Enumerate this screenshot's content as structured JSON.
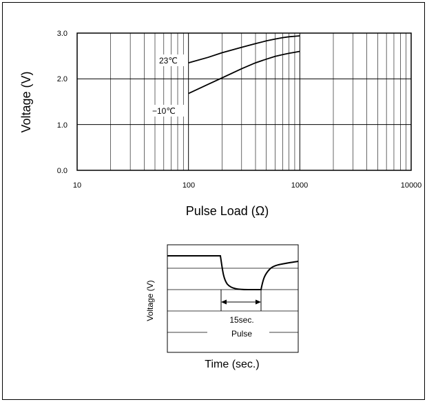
{
  "chart_data": [
    {
      "type": "line",
      "xscale": "log",
      "xlim": [
        10,
        10000
      ],
      "ylim": [
        0,
        3
      ],
      "xticks": [
        "10",
        "100",
        "1000",
        "10000"
      ],
      "yticks": [
        "0.0",
        "1.0",
        "2.0",
        "3.0"
      ],
      "xlabel": "Pulse Load (Ω)",
      "ylabel": "Voltage (V)",
      "grid": true,
      "series": [
        {
          "name": "23℃",
          "x": [
            100,
            150,
            200,
            300,
            400,
            500,
            600,
            700,
            800,
            900,
            1000
          ],
          "y": [
            2.35,
            2.47,
            2.57,
            2.69,
            2.77,
            2.83,
            2.87,
            2.9,
            2.92,
            2.93,
            2.94
          ]
        },
        {
          "name": "−10℃",
          "x": [
            100,
            150,
            200,
            300,
            400,
            500,
            600,
            700,
            800,
            900,
            1000
          ],
          "y": [
            1.68,
            1.88,
            2.02,
            2.22,
            2.35,
            2.43,
            2.49,
            2.53,
            2.56,
            2.58,
            2.6
          ]
        }
      ]
    },
    {
      "type": "line",
      "ylabel": "Voltage (V)",
      "xlabel": "Time (sec.)",
      "annotations": [
        "15sec.",
        "Pulse"
      ]
    }
  ]
}
